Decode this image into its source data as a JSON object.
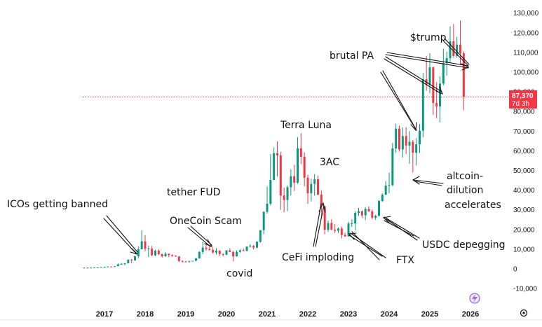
{
  "chart_data": {
    "type": "candlestick",
    "title": "",
    "interval": "monthly",
    "ylim": [
      -10000,
      130000
    ],
    "y_ticks": [
      "130,000",
      "120,000",
      "110,000",
      "100,000",
      "90,000",
      "80,000",
      "70,000",
      "60,000",
      "50,000",
      "40,000",
      "30,000",
      "20,000",
      "10,000",
      "0",
      "-10,000"
    ],
    "x_ticks": [
      "2017",
      "2018",
      "2019",
      "2020",
      "2021",
      "2022",
      "2023",
      "2024",
      "2025",
      "2026"
    ],
    "current_price": 87370,
    "current_price_label": "87,370",
    "countdown_label": "7d 3h",
    "colors": {
      "up": "#089981",
      "down": "#f23645",
      "text": "#131722",
      "annotation": "#111111"
    },
    "candles": [
      {
        "d": "2016-07",
        "o": 620,
        "h": 700,
        "l": 470,
        "c": 620
      },
      {
        "d": "2016-08",
        "o": 620,
        "h": 630,
        "l": 520,
        "c": 575
      },
      {
        "d": "2016-09",
        "o": 575,
        "h": 630,
        "l": 590,
        "c": 610
      },
      {
        "d": "2016-10",
        "o": 610,
        "h": 720,
        "l": 600,
        "c": 700
      },
      {
        "d": "2016-11",
        "o": 700,
        "h": 750,
        "l": 680,
        "c": 740
      },
      {
        "d": "2016-12",
        "o": 740,
        "h": 980,
        "l": 740,
        "c": 960
      },
      {
        "d": "2017-01",
        "o": 960,
        "h": 1150,
        "l": 750,
        "c": 970
      },
      {
        "d": "2017-02",
        "o": 970,
        "h": 1200,
        "l": 930,
        "c": 1190
      },
      {
        "d": "2017-03",
        "o": 1190,
        "h": 1300,
        "l": 890,
        "c": 1080
      },
      {
        "d": "2017-04",
        "o": 1080,
        "h": 1350,
        "l": 1060,
        "c": 1350
      },
      {
        "d": "2017-05",
        "o": 1350,
        "h": 2800,
        "l": 1350,
        "c": 2300
      },
      {
        "d": "2017-06",
        "o": 2300,
        "h": 3000,
        "l": 2200,
        "c": 2500
      },
      {
        "d": "2017-07",
        "o": 2500,
        "h": 2900,
        "l": 1800,
        "c": 2870
      },
      {
        "d": "2017-08",
        "o": 2870,
        "h": 4700,
        "l": 2700,
        "c": 4700
      },
      {
        "d": "2017-09",
        "o": 4700,
        "h": 5000,
        "l": 2950,
        "c": 4340
      },
      {
        "d": "2017-10",
        "o": 4340,
        "h": 6450,
        "l": 4200,
        "c": 6450
      },
      {
        "d": "2017-11",
        "o": 6450,
        "h": 11500,
        "l": 5500,
        "c": 10000
      },
      {
        "d": "2017-12",
        "o": 10000,
        "h": 19700,
        "l": 10000,
        "c": 14000
      },
      {
        "d": "2018-01",
        "o": 14000,
        "h": 17200,
        "l": 9000,
        "c": 10200
      },
      {
        "d": "2018-02",
        "o": 10200,
        "h": 11800,
        "l": 6000,
        "c": 10300
      },
      {
        "d": "2018-03",
        "o": 10300,
        "h": 11700,
        "l": 6500,
        "c": 6900
      },
      {
        "d": "2018-04",
        "o": 6900,
        "h": 9800,
        "l": 6500,
        "c": 9200
      },
      {
        "d": "2018-05",
        "o": 9200,
        "h": 10000,
        "l": 7000,
        "c": 7500
      },
      {
        "d": "2018-06",
        "o": 7500,
        "h": 7800,
        "l": 5800,
        "c": 6400
      },
      {
        "d": "2018-07",
        "o": 6400,
        "h": 8500,
        "l": 6100,
        "c": 7700
      },
      {
        "d": "2018-08",
        "o": 7700,
        "h": 7800,
        "l": 5900,
        "c": 7000
      },
      {
        "d": "2018-09",
        "o": 7000,
        "h": 7400,
        "l": 6100,
        "c": 6600
      },
      {
        "d": "2018-10",
        "o": 6600,
        "h": 7000,
        "l": 6200,
        "c": 6300
      },
      {
        "d": "2018-11",
        "o": 6300,
        "h": 6600,
        "l": 3500,
        "c": 4000
      },
      {
        "d": "2018-12",
        "o": 4000,
        "h": 4300,
        "l": 3200,
        "c": 3700
      },
      {
        "d": "2019-01",
        "o": 3700,
        "h": 4100,
        "l": 3400,
        "c": 3450
      },
      {
        "d": "2019-02",
        "o": 3450,
        "h": 4200,
        "l": 3400,
        "c": 3850
      },
      {
        "d": "2019-03",
        "o": 3850,
        "h": 4100,
        "l": 3700,
        "c": 4100
      },
      {
        "d": "2019-04",
        "o": 4100,
        "h": 5600,
        "l": 4100,
        "c": 5300
      },
      {
        "d": "2019-05",
        "o": 5300,
        "h": 9000,
        "l": 5300,
        "c": 8600
      },
      {
        "d": "2019-06",
        "o": 8600,
        "h": 13800,
        "l": 7500,
        "c": 10800
      },
      {
        "d": "2019-07",
        "o": 10800,
        "h": 13200,
        "l": 9100,
        "c": 10100
      },
      {
        "d": "2019-08",
        "o": 10100,
        "h": 12300,
        "l": 9400,
        "c": 9600
      },
      {
        "d": "2019-09",
        "o": 9600,
        "h": 10900,
        "l": 7800,
        "c": 8300
      },
      {
        "d": "2019-10",
        "o": 8300,
        "h": 10500,
        "l": 7300,
        "c": 9200
      },
      {
        "d": "2019-11",
        "o": 9200,
        "h": 9500,
        "l": 6500,
        "c": 7550
      },
      {
        "d": "2019-12",
        "o": 7550,
        "h": 7800,
        "l": 6400,
        "c": 7200
      },
      {
        "d": "2020-01",
        "o": 7200,
        "h": 9600,
        "l": 6900,
        "c": 9350
      },
      {
        "d": "2020-02",
        "o": 9350,
        "h": 10500,
        "l": 8500,
        "c": 8600
      },
      {
        "d": "2020-03",
        "o": 8600,
        "h": 9200,
        "l": 3800,
        "c": 6400
      },
      {
        "d": "2020-04",
        "o": 6400,
        "h": 9500,
        "l": 6200,
        "c": 8650
      },
      {
        "d": "2020-05",
        "o": 8650,
        "h": 10000,
        "l": 8100,
        "c": 9450
      },
      {
        "d": "2020-06",
        "o": 9450,
        "h": 10400,
        "l": 8900,
        "c": 9150
      },
      {
        "d": "2020-07",
        "o": 9150,
        "h": 11400,
        "l": 8900,
        "c": 11350
      },
      {
        "d": "2020-08",
        "o": 11350,
        "h": 12500,
        "l": 10900,
        "c": 11650
      },
      {
        "d": "2020-09",
        "o": 11650,
        "h": 12100,
        "l": 9800,
        "c": 10800
      },
      {
        "d": "2020-10",
        "o": 10800,
        "h": 14100,
        "l": 10400,
        "c": 13800
      },
      {
        "d": "2020-11",
        "o": 13800,
        "h": 19800,
        "l": 13200,
        "c": 19700
      },
      {
        "d": "2020-12",
        "o": 19700,
        "h": 29300,
        "l": 17600,
        "c": 29000
      },
      {
        "d": "2021-01",
        "o": 29000,
        "h": 41900,
        "l": 28100,
        "c": 33100
      },
      {
        "d": "2021-02",
        "o": 33100,
        "h": 58300,
        "l": 32300,
        "c": 45200
      },
      {
        "d": "2021-03",
        "o": 45200,
        "h": 61700,
        "l": 45000,
        "c": 58800
      },
      {
        "d": "2021-04",
        "o": 58800,
        "h": 64800,
        "l": 47000,
        "c": 57700
      },
      {
        "d": "2021-05",
        "o": 57700,
        "h": 59500,
        "l": 30000,
        "c": 37300
      },
      {
        "d": "2021-06",
        "o": 37300,
        "h": 41300,
        "l": 28800,
        "c": 35000
      },
      {
        "d": "2021-07",
        "o": 35000,
        "h": 42400,
        "l": 29300,
        "c": 41500
      },
      {
        "d": "2021-08",
        "o": 41500,
        "h": 50500,
        "l": 37300,
        "c": 47100
      },
      {
        "d": "2021-09",
        "o": 47100,
        "h": 52900,
        "l": 39600,
        "c": 43800
      },
      {
        "d": "2021-10",
        "o": 43800,
        "h": 67000,
        "l": 43300,
        "c": 61300
      },
      {
        "d": "2021-11",
        "o": 61300,
        "h": 69000,
        "l": 53300,
        "c": 57000
      },
      {
        "d": "2021-12",
        "o": 57000,
        "h": 59100,
        "l": 42000,
        "c": 46300
      },
      {
        "d": "2022-01",
        "o": 46300,
        "h": 47900,
        "l": 33000,
        "c": 38500
      },
      {
        "d": "2022-02",
        "o": 38500,
        "h": 45800,
        "l": 34300,
        "c": 43200
      },
      {
        "d": "2022-03",
        "o": 43200,
        "h": 48200,
        "l": 37200,
        "c": 45500
      },
      {
        "d": "2022-04",
        "o": 45500,
        "h": 47400,
        "l": 37700,
        "c": 37700
      },
      {
        "d": "2022-05",
        "o": 37700,
        "h": 40000,
        "l": 26700,
        "c": 31800
      },
      {
        "d": "2022-06",
        "o": 31800,
        "h": 31900,
        "l": 17600,
        "c": 19900
      },
      {
        "d": "2022-07",
        "o": 19900,
        "h": 24600,
        "l": 18800,
        "c": 23300
      },
      {
        "d": "2022-08",
        "o": 23300,
        "h": 25200,
        "l": 19600,
        "c": 20000
      },
      {
        "d": "2022-09",
        "o": 20000,
        "h": 22800,
        "l": 18200,
        "c": 19400
      },
      {
        "d": "2022-10",
        "o": 19400,
        "h": 21000,
        "l": 18200,
        "c": 20500
      },
      {
        "d": "2022-11",
        "o": 20500,
        "h": 21500,
        "l": 15500,
        "c": 17200
      },
      {
        "d": "2022-12",
        "o": 17200,
        "h": 18400,
        "l": 16300,
        "c": 16500
      },
      {
        "d": "2023-01",
        "o": 16500,
        "h": 23900,
        "l": 16500,
        "c": 23100
      },
      {
        "d": "2023-02",
        "o": 23100,
        "h": 25200,
        "l": 21400,
        "c": 23100
      },
      {
        "d": "2023-03",
        "o": 23100,
        "h": 29200,
        "l": 19600,
        "c": 28500
      },
      {
        "d": "2023-04",
        "o": 28500,
        "h": 31000,
        "l": 26900,
        "c": 29300
      },
      {
        "d": "2023-05",
        "o": 29300,
        "h": 29800,
        "l": 25800,
        "c": 27200
      },
      {
        "d": "2023-06",
        "o": 27200,
        "h": 31400,
        "l": 24800,
        "c": 30500
      },
      {
        "d": "2023-07",
        "o": 30500,
        "h": 31800,
        "l": 28900,
        "c": 29200
      },
      {
        "d": "2023-08",
        "o": 29200,
        "h": 30200,
        "l": 25300,
        "c": 26000
      },
      {
        "d": "2023-09",
        "o": 26000,
        "h": 27500,
        "l": 24900,
        "c": 27000
      },
      {
        "d": "2023-10",
        "o": 27000,
        "h": 35000,
        "l": 26600,
        "c": 34500
      },
      {
        "d": "2023-11",
        "o": 34500,
        "h": 38400,
        "l": 34000,
        "c": 37700
      },
      {
        "d": "2023-12",
        "o": 37700,
        "h": 44700,
        "l": 37600,
        "c": 42300
      },
      {
        "d": "2024-01",
        "o": 42300,
        "h": 48900,
        "l": 38500,
        "c": 42600
      },
      {
        "d": "2024-02",
        "o": 42600,
        "h": 64000,
        "l": 41900,
        "c": 61200
      },
      {
        "d": "2024-03",
        "o": 61200,
        "h": 73800,
        "l": 59000,
        "c": 71300
      },
      {
        "d": "2024-04",
        "o": 71300,
        "h": 72800,
        "l": 59600,
        "c": 60700
      },
      {
        "d": "2024-05",
        "o": 60700,
        "h": 71900,
        "l": 56600,
        "c": 67500
      },
      {
        "d": "2024-06",
        "o": 67500,
        "h": 72000,
        "l": 58400,
        "c": 62700
      },
      {
        "d": "2024-07",
        "o": 62700,
        "h": 70000,
        "l": 53500,
        "c": 64600
      },
      {
        "d": "2024-08",
        "o": 64600,
        "h": 65600,
        "l": 49000,
        "c": 59000
      },
      {
        "d": "2024-09",
        "o": 59000,
        "h": 66500,
        "l": 52500,
        "c": 63300
      },
      {
        "d": "2024-10",
        "o": 63300,
        "h": 73600,
        "l": 58900,
        "c": 70200
      },
      {
        "d": "2024-11",
        "o": 70200,
        "h": 99600,
        "l": 66800,
        "c": 96400
      },
      {
        "d": "2024-12",
        "o": 96400,
        "h": 108300,
        "l": 90500,
        "c": 93400
      },
      {
        "d": "2025-01",
        "o": 93400,
        "h": 109600,
        "l": 89200,
        "c": 102400
      },
      {
        "d": "2025-02",
        "o": 102400,
        "h": 102800,
        "l": 78200,
        "c": 84300
      },
      {
        "d": "2025-03",
        "o": 84300,
        "h": 95000,
        "l": 76600,
        "c": 82500
      },
      {
        "d": "2025-04",
        "o": 82500,
        "h": 97900,
        "l": 74400,
        "c": 94200
      },
      {
        "d": "2025-05",
        "o": 94200,
        "h": 111900,
        "l": 93300,
        "c": 104600
      },
      {
        "d": "2025-06",
        "o": 104600,
        "h": 110500,
        "l": 98200,
        "c": 107100
      },
      {
        "d": "2025-07",
        "o": 107100,
        "h": 123200,
        "l": 105100,
        "c": 115700
      },
      {
        "d": "2025-08",
        "o": 115700,
        "h": 124400,
        "l": 107300,
        "c": 108200
      },
      {
        "d": "2025-09",
        "o": 108200,
        "h": 117900,
        "l": 107300,
        "c": 114000
      },
      {
        "d": "2025-10",
        "o": 114000,
        "h": 126200,
        "l": 103500,
        "c": 109600
      },
      {
        "d": "2025-11",
        "o": 109600,
        "h": 110600,
        "l": 80600,
        "c": 87370
      }
    ],
    "annotations": [
      {
        "id": "icos",
        "text": "ICOs getting banned"
      },
      {
        "id": "tether",
        "text": "tether FUD"
      },
      {
        "id": "onecoin",
        "text": "OneCoin Scam"
      },
      {
        "id": "covid",
        "text": "covid"
      },
      {
        "id": "terra",
        "text": "Terra Luna"
      },
      {
        "id": "3ac",
        "text": "3AC"
      },
      {
        "id": "cefi",
        "text": "CeFi imploding"
      },
      {
        "id": "ftx",
        "text": "FTX"
      },
      {
        "id": "usdc",
        "text": "USDC depegging"
      },
      {
        "id": "alt1",
        "text": "altcoin-"
      },
      {
        "id": "alt2",
        "text": "dilution"
      },
      {
        "id": "alt3",
        "text": "accelerates"
      },
      {
        "id": "brutal",
        "text": "brutal PA"
      },
      {
        "id": "trump",
        "text": "$trump"
      }
    ]
  }
}
